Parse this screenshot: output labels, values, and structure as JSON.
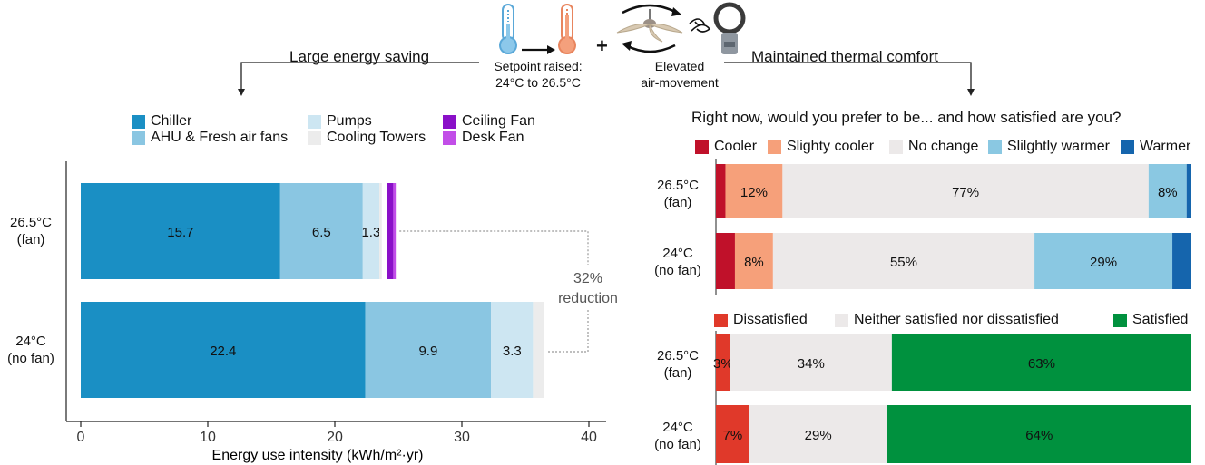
{
  "header": {
    "left_label": "Large energy saving",
    "right_label": "Maintained  thermal comfort",
    "setpoint_caption": [
      "Setpoint raised:",
      "24°C to 26.5°C"
    ],
    "plus": "+",
    "airmove_caption": [
      "Elevated",
      "air-movement"
    ],
    "icons": [
      "thermometer-cool-icon",
      "arrow-right-icon",
      "thermometer-warm-icon",
      "ceiling-fan-icon",
      "desk-fan-icon"
    ]
  },
  "colors": {
    "chiller": "#1a8fc4",
    "ahu": "#8ac6e2",
    "pumps": "#cde6f2",
    "towers": "#ececec",
    "ceiling_fan": "#8a10c8",
    "desk_fan": "#c24ee8",
    "cooler": "#c0112a",
    "slightly_cooler": "#f6a07a",
    "no_change": "#ece9e9",
    "slightly_warmer": "#8ac8e2",
    "warmer": "#1565ad",
    "dissatisfied": "#e0392a",
    "neither": "#ece9e9",
    "satisfied": "#00913e"
  },
  "chart_data": [
    {
      "type": "bar",
      "orientation": "horizontal",
      "stacked": true,
      "categories": [
        "26.5°C (fan)",
        "24°C (no fan)"
      ],
      "category_lines": [
        [
          "26.5°C",
          "(fan)"
        ],
        [
          "24°C",
          "(no fan)"
        ]
      ],
      "series": [
        {
          "name": "Chiller",
          "values": [
            15.7,
            22.4
          ],
          "labels": [
            "15.7",
            "22.4"
          ]
        },
        {
          "name": "AHU & Fresh air fans",
          "values": [
            6.5,
            9.9
          ],
          "labels": [
            "6.5",
            "9.9"
          ]
        },
        {
          "name": "Pumps",
          "values": [
            1.3,
            3.3
          ],
          "labels": [
            "1.3",
            "3.3"
          ]
        },
        {
          "name": "Cooling Towers",
          "values": [
            0.2,
            0.9
          ],
          "labels": [
            "",
            ""
          ]
        },
        {
          "name": "Ceiling Fan",
          "values": [
            0.5,
            0
          ],
          "labels": [
            "",
            ""
          ]
        },
        {
          "name": "Desk Fan",
          "values": [
            0.2,
            0
          ],
          "labels": [
            "",
            ""
          ]
        }
      ],
      "fan_gap": 0.4,
      "xlabel": "Energy use intensity (kWh/m²·yr)",
      "xlim": [
        0,
        40
      ],
      "xticks": [
        0,
        10,
        20,
        30,
        40
      ],
      "annotation": [
        "32%",
        "reduction"
      ],
      "legend_placement": "top",
      "grid": false
    },
    {
      "type": "bar",
      "orientation": "horizontal",
      "stacked": true,
      "percent": true,
      "title": "Right now, would you prefer to be... and how satisfied are you?",
      "categories": [
        "26.5°C (fan)",
        "24°C (no fan)"
      ],
      "category_lines": [
        [
          "26.5°C",
          "(fan)"
        ],
        [
          "24°C",
          "(no fan)"
        ]
      ],
      "series": [
        {
          "name": "Cooler",
          "values": [
            2,
            4
          ],
          "labels": [
            "",
            ""
          ]
        },
        {
          "name": "Slighty cooler",
          "values": [
            12,
            8
          ],
          "labels": [
            "12%",
            "8%"
          ]
        },
        {
          "name": "No change",
          "values": [
            77,
            55
          ],
          "labels": [
            "77%",
            "55%"
          ]
        },
        {
          "name": "Slilghtly warmer",
          "values": [
            8,
            29
          ],
          "labels": [
            "8%",
            "29%"
          ]
        },
        {
          "name": "Warmer",
          "values": [
            1,
            4
          ],
          "labels": [
            "",
            ""
          ]
        }
      ],
      "xlim": [
        0,
        100
      ],
      "legend_placement": "top"
    },
    {
      "type": "bar",
      "orientation": "horizontal",
      "stacked": true,
      "percent": true,
      "categories": [
        "26.5°C (fan)",
        "24°C (no fan)"
      ],
      "category_lines": [
        [
          "26.5°C",
          "(fan)"
        ],
        [
          "24°C",
          "(no fan)"
        ]
      ],
      "series": [
        {
          "name": "Dissatisfied",
          "values": [
            3,
            7
          ],
          "labels": [
            "3%",
            "7%"
          ]
        },
        {
          "name": "Neither satisfied nor dissatisfied",
          "values": [
            34,
            29
          ],
          "labels": [
            "34%",
            "29%"
          ]
        },
        {
          "name": "Satisfied",
          "values": [
            63,
            64
          ],
          "labels": [
            "63%",
            "64%"
          ]
        }
      ],
      "xlim": [
        0,
        100
      ],
      "legend_placement": "top"
    }
  ]
}
